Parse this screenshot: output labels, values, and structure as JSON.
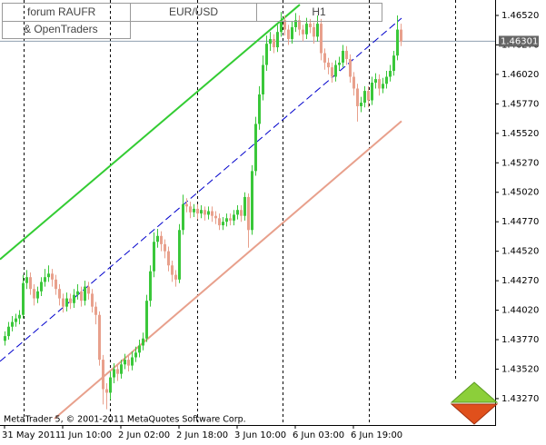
{
  "chart_data": {
    "type": "candlestick",
    "header": [
      "forum RAUFR",
      "& OpenTraders",
      "EUR/USD",
      "H1"
    ],
    "footer": "MetaTrader 5, © 2001-2011 MetaQuotes Software Corp.",
    "colors": {
      "up": "#3ac73a",
      "down": "#e8a08c"
    },
    "ylim": [
      1.43046,
      1.46651
    ],
    "yticks": [
      {
        "value": 1.4652,
        "label": "1.46520"
      },
      {
        "value": 1.4627,
        "label": "1.46270"
      },
      {
        "value": 1.4602,
        "label": "1.46020"
      },
      {
        "value": 1.4577,
        "label": "1.45770"
      },
      {
        "value": 1.4552,
        "label": "1.45520"
      },
      {
        "value": 1.4527,
        "label": "1.45270"
      },
      {
        "value": 1.4502,
        "label": "1.45020"
      },
      {
        "value": 1.4477,
        "label": "1.44770"
      },
      {
        "value": 1.4452,
        "label": "1.44520"
      },
      {
        "value": 1.4427,
        "label": "1.44270"
      },
      {
        "value": 1.4402,
        "label": "1.44020"
      },
      {
        "value": 1.4377,
        "label": "1.43770"
      },
      {
        "value": 1.4352,
        "label": "1.43520"
      },
      {
        "value": 1.4327,
        "label": "1.43270"
      }
    ],
    "current_price": {
      "value": 1.46301,
      "label": "1.46301"
    },
    "categories": [
      "31 May 2011",
      null,
      null,
      null,
      null,
      null,
      null,
      null,
      null,
      null,
      null,
      null,
      null,
      null,
      null,
      null,
      "1 Jun 10:00",
      null,
      null,
      null,
      null,
      null,
      null,
      null,
      null,
      null,
      null,
      null,
      null,
      null,
      null,
      null,
      "2 Jun 02:00",
      null,
      null,
      null,
      null,
      null,
      null,
      null,
      null,
      null,
      null,
      null,
      null,
      null,
      null,
      null,
      "2 Jun 18:00",
      null,
      null,
      null,
      null,
      null,
      null,
      null,
      null,
      null,
      null,
      null,
      null,
      null,
      null,
      null,
      "3 Jun 10:00",
      null,
      null,
      null,
      null,
      null,
      null,
      null,
      null,
      null,
      null,
      null,
      null,
      null,
      null,
      null,
      "6 Jun 03:00",
      null,
      null,
      null,
      null,
      null,
      null,
      null,
      null,
      null,
      null,
      null,
      null,
      null,
      null,
      null,
      "6 Jun 19:00",
      null,
      null,
      null,
      null,
      null,
      null,
      null,
      null,
      null,
      null,
      null,
      null,
      null
    ],
    "open": [
      1.4376,
      1.438,
      1.4388,
      1.4392,
      1.4395,
      1.4398,
      1.4425,
      1.443,
      1.442,
      1.4412,
      1.4418,
      1.4426,
      1.443,
      1.4433,
      1.4428,
      1.442,
      1.4412,
      1.4405,
      1.4412,
      1.4408,
      1.4415,
      1.4418,
      1.441,
      1.4422,
      1.4416,
      1.4405,
      1.4398,
      1.436,
      1.4335,
      1.4332,
      1.4345,
      1.4352,
      1.4348,
      1.4356,
      1.436,
      1.4355,
      1.4362,
      1.4366,
      1.4372,
      1.4378,
      1.441,
      1.4435,
      1.446,
      1.4465,
      1.4458,
      1.4452,
      1.444,
      1.4432,
      1.4428,
      1.447,
      1.4492,
      1.449,
      1.4485,
      1.4488,
      1.4484,
      1.4487,
      1.4483,
      1.4486,
      1.4482,
      1.448,
      1.4474,
      1.4477,
      1.448,
      1.4478,
      1.4483,
      1.4487,
      1.4482,
      1.4498,
      1.447,
      1.452,
      1.456,
      1.4585,
      1.461,
      1.4628,
      1.4632,
      1.4625,
      1.4638,
      1.4648,
      1.464,
      1.4632,
      1.4642,
      1.4648,
      1.464,
      1.4636,
      1.4645,
      1.4642,
      1.4634,
      1.4645,
      1.462,
      1.4612,
      1.4608,
      1.46,
      1.461,
      1.4612,
      1.4622,
      1.4615,
      1.46,
      1.459,
      1.4575,
      1.4578,
      1.4588,
      1.458,
      1.4595,
      1.4598,
      1.459,
      1.4594,
      1.46,
      1.4605,
      1.4618,
      1.464
    ],
    "high": [
      1.4384,
      1.4392,
      1.4397,
      1.4399,
      1.4402,
      1.4432,
      1.4436,
      1.4434,
      1.4424,
      1.4422,
      1.443,
      1.4437,
      1.444,
      1.4437,
      1.4432,
      1.4424,
      1.4416,
      1.4417,
      1.4416,
      1.442,
      1.4424,
      1.4422,
      1.4427,
      1.4426,
      1.442,
      1.4409,
      1.4401,
      1.4364,
      1.434,
      1.435,
      1.4357,
      1.4356,
      1.436,
      1.4365,
      1.4364,
      1.4367,
      1.4371,
      1.4377,
      1.4383,
      1.4415,
      1.444,
      1.4468,
      1.4471,
      1.4469,
      1.4462,
      1.4456,
      1.4444,
      1.4436,
      1.4475,
      1.45,
      1.4497,
      1.4494,
      1.4492,
      1.4492,
      1.4491,
      1.449,
      1.449,
      1.449,
      1.4486,
      1.4484,
      1.4481,
      1.4484,
      1.4484,
      1.4487,
      1.4491,
      1.4491,
      1.4502,
      1.4501,
      1.4525,
      1.4566,
      1.4592,
      1.4618,
      1.4635,
      1.4638,
      1.4636,
      1.4644,
      1.4655,
      1.4652,
      1.4644,
      1.4647,
      1.4654,
      1.4652,
      1.4644,
      1.465,
      1.4649,
      1.4646,
      1.4652,
      1.4649,
      1.4624,
      1.4616,
      1.4612,
      1.4614,
      1.4617,
      1.4627,
      1.4626,
      1.4619,
      1.4604,
      1.4594,
      1.4583,
      1.4592,
      1.4592,
      1.46,
      1.4603,
      1.4602,
      1.4599,
      1.4605,
      1.461,
      1.4622,
      1.4652,
      1.4645
    ],
    "low": [
      1.4372,
      1.4377,
      1.4384,
      1.4388,
      1.439,
      1.4395,
      1.442,
      1.4415,
      1.4406,
      1.4408,
      1.4414,
      1.4422,
      1.4426,
      1.4422,
      1.4415,
      1.4406,
      1.44,
      1.4401,
      1.4403,
      1.4404,
      1.4411,
      1.4405,
      1.4406,
      1.4411,
      1.44,
      1.439,
      1.4355,
      1.4322,
      1.4318,
      1.4326,
      1.434,
      1.4342,
      1.4344,
      1.4352,
      1.435,
      1.4351,
      1.4358,
      1.4362,
      1.4368,
      1.4375,
      1.4405,
      1.443,
      1.4455,
      1.4452,
      1.4446,
      1.4435,
      1.4426,
      1.4422,
      1.4425,
      1.4466,
      1.4485,
      1.448,
      1.4481,
      1.4479,
      1.448,
      1.4478,
      1.4479,
      1.4477,
      1.4475,
      1.447,
      1.447,
      1.4473,
      1.4474,
      1.4474,
      1.4479,
      1.4477,
      1.4478,
      1.4455,
      1.4466,
      1.4516,
      1.4555,
      1.458,
      1.4605,
      1.4622,
      1.462,
      1.4621,
      1.4634,
      1.4635,
      1.4627,
      1.4628,
      1.4638,
      1.4635,
      1.463,
      1.4632,
      1.4637,
      1.4628,
      1.463,
      1.4614,
      1.4606,
      1.4602,
      1.4595,
      1.4596,
      1.4605,
      1.4608,
      1.461,
      1.4595,
      1.4584,
      1.4562,
      1.457,
      1.4574,
      1.4574,
      1.4576,
      1.459,
      1.4584,
      1.4586,
      1.459,
      1.4596,
      1.4601,
      1.4614,
      1.4626
    ],
    "close": [
      1.438,
      1.4388,
      1.4392,
      1.4395,
      1.4398,
      1.4425,
      1.443,
      1.442,
      1.4412,
      1.4418,
      1.4426,
      1.443,
      1.4433,
      1.4428,
      1.442,
      1.4412,
      1.4405,
      1.4412,
      1.4408,
      1.4415,
      1.4418,
      1.441,
      1.4422,
      1.4416,
      1.4405,
      1.4398,
      1.436,
      1.4335,
      1.4332,
      1.4345,
      1.4352,
      1.4348,
      1.4356,
      1.436,
      1.4355,
      1.4362,
      1.4366,
      1.4372,
      1.4378,
      1.441,
      1.4435,
      1.446,
      1.4465,
      1.4458,
      1.4452,
      1.444,
      1.4432,
      1.4428,
      1.447,
      1.4492,
      1.449,
      1.4485,
      1.4488,
      1.4484,
      1.4487,
      1.4483,
      1.4486,
      1.4482,
      1.448,
      1.4474,
      1.4477,
      1.448,
      1.4478,
      1.4483,
      1.4487,
      1.4482,
      1.4498,
      1.447,
      1.452,
      1.456,
      1.4585,
      1.461,
      1.4628,
      1.4632,
      1.4625,
      1.4638,
      1.4648,
      1.464,
      1.4632,
      1.4642,
      1.4648,
      1.464,
      1.4636,
      1.4645,
      1.4642,
      1.4634,
      1.4645,
      1.462,
      1.4612,
      1.4608,
      1.46,
      1.461,
      1.4612,
      1.4622,
      1.4615,
      1.46,
      1.459,
      1.4575,
      1.4578,
      1.4588,
      1.458,
      1.4595,
      1.4598,
      1.459,
      1.4594,
      1.46,
      1.4605,
      1.4618,
      1.464,
      1.463
    ],
    "trendlines": [
      {
        "color": "#33cc33",
        "dashed": false,
        "x": [
          -1.25,
          81.25
        ],
        "y": [
          1.44451,
          1.46612
        ]
      },
      {
        "color": "#0000cc",
        "dashed": true,
        "x": [
          -1.25,
          109.25
        ],
        "y": [
          1.43586,
          1.46497
        ]
      },
      {
        "color": "#e8a08c",
        "dashed": false,
        "x": [
          13.75,
          109.25
        ],
        "y": [
          1.431,
          1.45624
        ]
      }
    ]
  }
}
